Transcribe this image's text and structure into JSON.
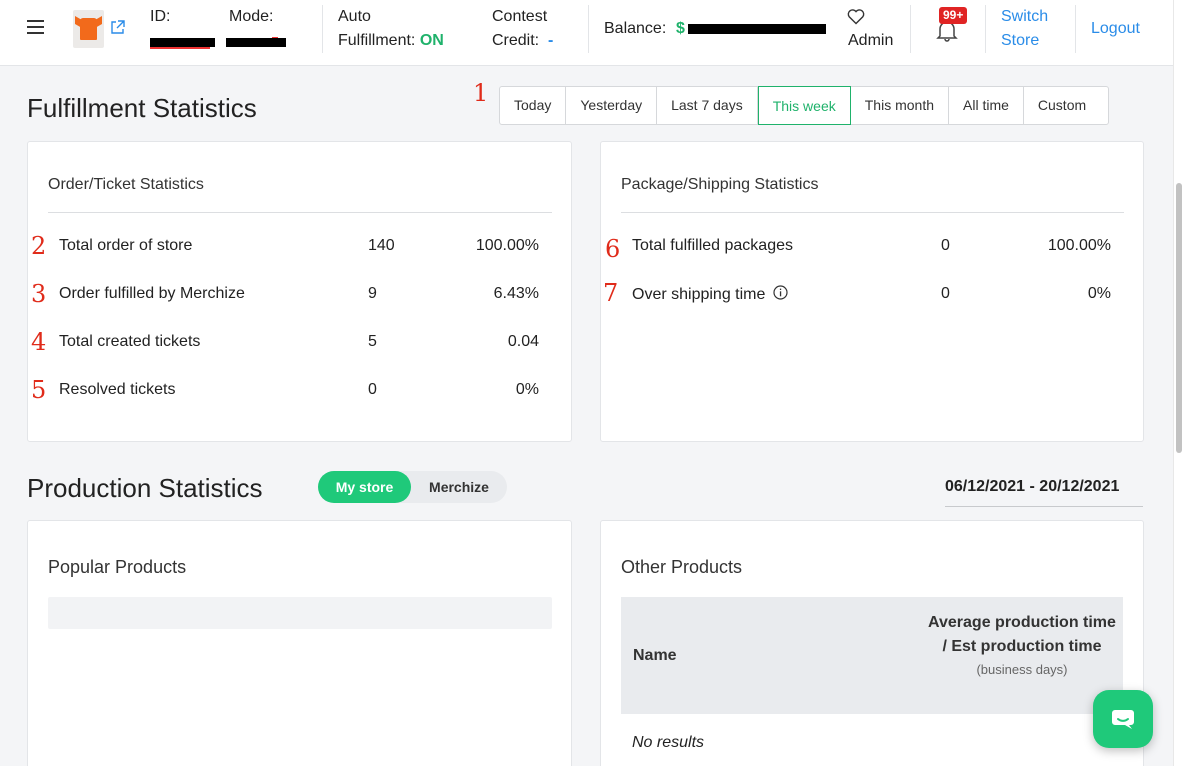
{
  "header": {
    "id_label": "ID:",
    "mode_label": "Mode:",
    "auto_label_1": "Auto",
    "auto_label_2": "Fulfillment:",
    "auto_value": "ON",
    "credit_label_1": "Contest",
    "credit_label_2": "Credit:",
    "credit_value": "-",
    "balance_label": "Balance:",
    "balance_value": "$",
    "admin_label": "Admin",
    "notification_badge": "99+",
    "switch_label_1": "Switch",
    "switch_label_2": "Store",
    "logout_label": "Logout"
  },
  "fulfillment": {
    "title": "Fulfillment Statistics",
    "ranges": [
      "Today",
      "Yesterday",
      "Last 7 days",
      "This week",
      "This month",
      "All time",
      "Custom"
    ],
    "active_range": "This week"
  },
  "order_card": {
    "title": "Order/Ticket Statistics",
    "rows": [
      {
        "label": "Total order of store",
        "value": "140",
        "pct": "100.00%"
      },
      {
        "label": "Order fulfilled by Merchize",
        "value": "9",
        "pct": "6.43%"
      },
      {
        "label": "Total created tickets",
        "value": "5",
        "pct": "0.04"
      },
      {
        "label": "Resolved tickets",
        "value": "0",
        "pct": "0%"
      }
    ]
  },
  "package_card": {
    "title": "Package/Shipping Statistics",
    "rows": [
      {
        "label": "Total fulfilled packages",
        "value": "0",
        "pct": "100.00%"
      },
      {
        "label": "Over shipping time",
        "value": "0",
        "pct": "0%"
      }
    ]
  },
  "annotations": [
    "1",
    "2",
    "3",
    "4",
    "5",
    "6",
    "7"
  ],
  "production": {
    "title": "Production Statistics",
    "toggle": {
      "on": "My store",
      "off": "Merchize"
    },
    "date_range": "06/12/2021 - 20/12/2021"
  },
  "popular": {
    "title": "Popular Products"
  },
  "other": {
    "title": "Other Products",
    "col_name": "Name",
    "col_avg": "Average production time / Est production time",
    "col_avg_sub": "(business days)",
    "empty": "No results"
  },
  "colors": {
    "accent": "#1fb26b",
    "link": "#2a8ce8",
    "annotation": "#e02b1a",
    "badge": "#e02424"
  },
  "icons": [
    "menu-icon",
    "external-link-icon",
    "heart-icon",
    "bell-icon",
    "info-icon",
    "chat-icon"
  ]
}
